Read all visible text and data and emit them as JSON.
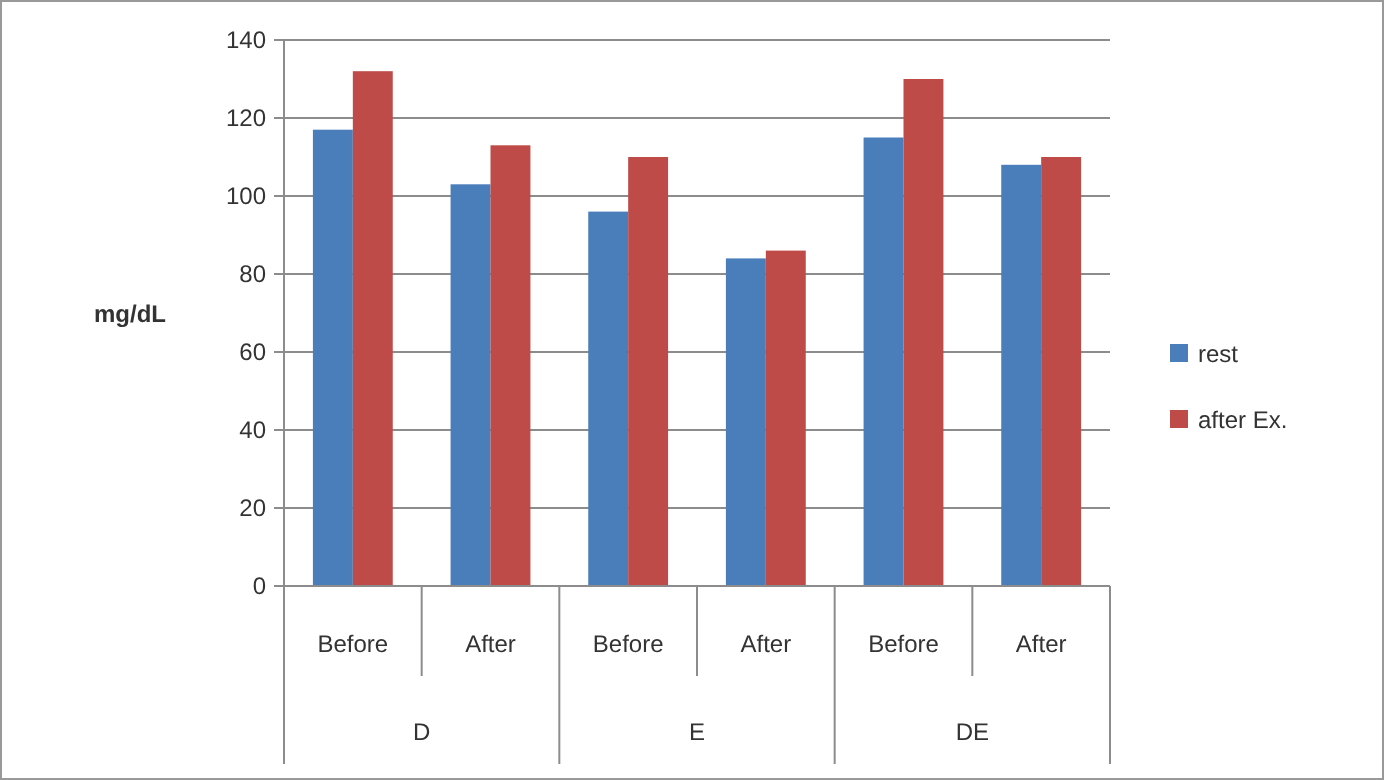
{
  "chart_data": {
    "type": "bar",
    "ylabel": "mg/dL",
    "categories": [
      "Before",
      "After",
      "Before",
      "After",
      "Before",
      "After"
    ],
    "annotations": [
      "D",
      "E",
      "DE"
    ],
    "series": [
      {
        "name": "rest",
        "color": "#4a7ebb",
        "values": [
          117,
          103,
          96,
          84,
          115,
          108
        ]
      },
      {
        "name": "after Ex.",
        "color": "#be4b48",
        "values": [
          132,
          113,
          110,
          86,
          130,
          110
        ]
      }
    ],
    "ylim": [
      0,
      140
    ],
    "yticks": [
      0,
      20,
      40,
      60,
      80,
      100,
      120,
      140
    ],
    "grid": "y",
    "legend": "right"
  }
}
